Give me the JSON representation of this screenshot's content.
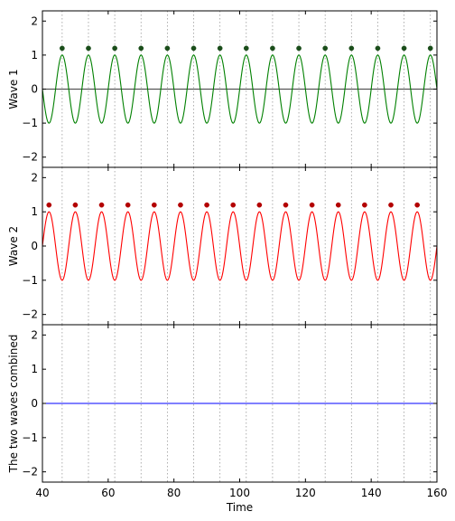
{
  "chart_data": {
    "type": "line",
    "xlabel": "Time",
    "xlim": [
      40,
      160
    ],
    "xticks": [
      40,
      60,
      80,
      100,
      120,
      140,
      160
    ],
    "vgrid": [
      46,
      54,
      62,
      70,
      78,
      86,
      94,
      102,
      110,
      118,
      126,
      134,
      142,
      150,
      158
    ],
    "panels": [
      {
        "ylabel": "Wave 1",
        "ylim": [
          -2.3,
          2.3
        ],
        "yticks": [
          -2,
          -1,
          0,
          1,
          2
        ],
        "zero_line": true,
        "series": [
          {
            "color": "#008000",
            "kind": "sine",
            "amplitude": 1,
            "period": 8,
            "phase_sign": -1,
            "peak_x": [
              46,
              54,
              62,
              70,
              78,
              86,
              94,
              102,
              110,
              118,
              126,
              134,
              142,
              150,
              158
            ],
            "peak_marker_y": 1.2,
            "marker_color": "#1a4d1a"
          }
        ]
      },
      {
        "ylabel": "Wave 2",
        "ylim": [
          -2.3,
          2.3
        ],
        "yticks": [
          -2,
          -1,
          0,
          1,
          2
        ],
        "zero_line": false,
        "series": [
          {
            "color": "#ff0000",
            "kind": "sine",
            "amplitude": 1,
            "period": 8,
            "phase_sign": 1,
            "peak_x": [
              42,
              50,
              58,
              66,
              74,
              82,
              90,
              98,
              106,
              114,
              122,
              130,
              138,
              146,
              154
            ],
            "peak_marker_y": 1.2,
            "marker_color": "#b30000"
          }
        ]
      },
      {
        "ylabel": "The two waves combined",
        "ylim": [
          -2.3,
          2.3
        ],
        "yticks": [
          -2,
          -1,
          0,
          1,
          2
        ],
        "zero_line": false,
        "series": [
          {
            "color": "#0000ff",
            "kind": "constant",
            "value": 0
          }
        ]
      }
    ]
  }
}
